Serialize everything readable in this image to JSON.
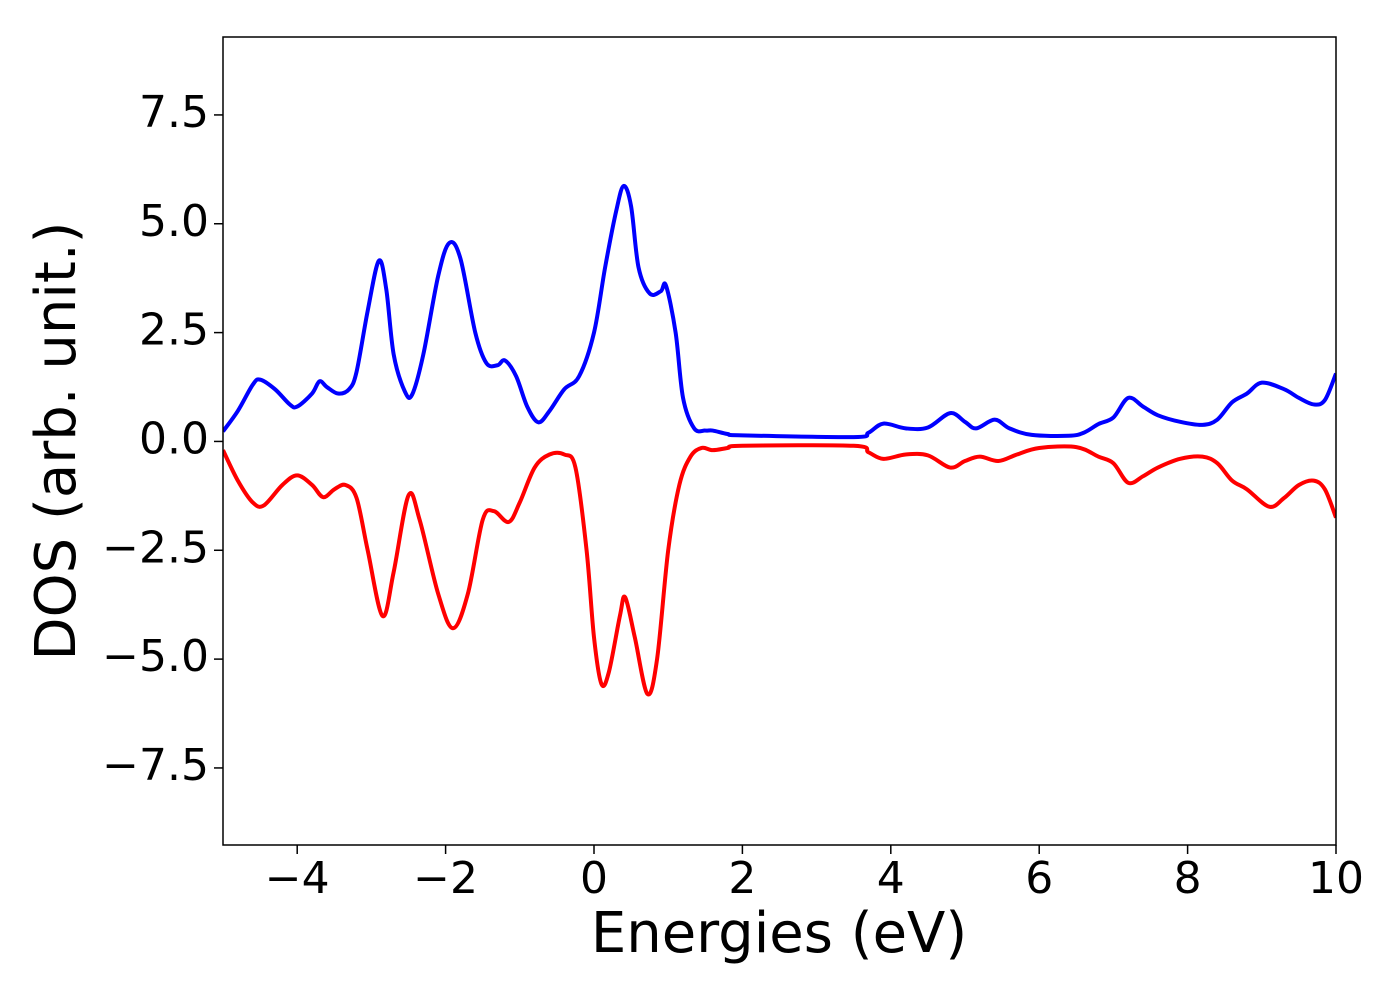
{
  "chart_data": {
    "type": "line",
    "xlabel": "Energies (eV)",
    "ylabel": "DOS (arb. unit.)",
    "xlim": [
      -5,
      10
    ],
    "ylim": [
      -9.27,
      9.29
    ],
    "xticks": [
      {
        "value": -4,
        "label": "−4"
      },
      {
        "value": -2,
        "label": "−2"
      },
      0,
      2,
      4,
      6,
      8,
      10
    ],
    "yticks": [
      {
        "value": -7.5,
        "label": "−7.5"
      },
      {
        "value": -5,
        "label": "−5.0"
      },
      {
        "value": -2.5,
        "label": "−2.5"
      },
      {
        "value": 0,
        "label": "0.0"
      },
      2.5,
      {
        "value": 5,
        "label": "5.0"
      },
      7.5
    ],
    "series": [
      {
        "color": "#0000ff",
        "x": [
          -5,
          -4.8,
          -4.6,
          -4.5,
          -4.3,
          -4.1,
          -4.0,
          -3.8,
          -3.7,
          -3.6,
          -3.45,
          -3.3,
          -3.2,
          -3.05,
          -2.9,
          -2.8,
          -2.7,
          -2.55,
          -2.45,
          -2.3,
          -2.1,
          -1.95,
          -1.8,
          -1.6,
          -1.45,
          -1.3,
          -1.2,
          -1.05,
          -0.9,
          -0.75,
          -0.6,
          -0.4,
          -0.2,
          0,
          0.15,
          0.3,
          0.4,
          0.5,
          0.6,
          0.75,
          0.9,
          0.97,
          1.1,
          1.2,
          1.35,
          1.5,
          1.6,
          1.8,
          2,
          3.5,
          3.7,
          3.9,
          4.2,
          4.5,
          4.8,
          5.0,
          5.15,
          5.4,
          5.6,
          5.9,
          6.4,
          6.6,
          6.8,
          7.0,
          7.2,
          7.4,
          7.6,
          7.9,
          8.2,
          8.4,
          8.6,
          8.8,
          9.0,
          9.3,
          9.5,
          9.7,
          9.85,
          10
        ],
        "values": [
          0.23,
          0.7,
          1.3,
          1.42,
          1.2,
          0.85,
          0.8,
          1.1,
          1.38,
          1.25,
          1.1,
          1.2,
          1.6,
          3.0,
          4.15,
          3.5,
          2.0,
          1.15,
          1.08,
          2.0,
          3.8,
          4.56,
          4.2,
          2.5,
          1.8,
          1.75,
          1.86,
          1.5,
          0.8,
          0.44,
          0.7,
          1.2,
          1.5,
          2.5,
          4.0,
          5.3,
          5.87,
          5.4,
          4.0,
          3.4,
          3.45,
          3.58,
          2.5,
          1.0,
          0.3,
          0.25,
          0.25,
          0.17,
          0.14,
          0.1,
          0.2,
          0.41,
          0.3,
          0.32,
          0.65,
          0.45,
          0.3,
          0.5,
          0.3,
          0.15,
          0.13,
          0.2,
          0.4,
          0.55,
          1.0,
          0.8,
          0.6,
          0.45,
          0.38,
          0.5,
          0.9,
          1.1,
          1.35,
          1.2,
          1.0,
          0.85,
          0.95,
          1.56
        ]
      },
      {
        "color": "#ff0000",
        "x": [
          -5,
          -4.8,
          -4.6,
          -4.45,
          -4.2,
          -4.0,
          -3.8,
          -3.65,
          -3.5,
          -3.35,
          -3.2,
          -3.05,
          -2.85,
          -2.7,
          -2.5,
          -2.35,
          -2.1,
          -1.9,
          -1.7,
          -1.5,
          -1.35,
          -1.15,
          -1.0,
          -0.8,
          -0.6,
          -0.4,
          -0.25,
          -0.1,
          0.0,
          0.1,
          0.2,
          0.35,
          0.42,
          0.55,
          0.72,
          0.85,
          1.0,
          1.15,
          1.3,
          1.45,
          1.6,
          1.8,
          2,
          3.5,
          3.7,
          3.9,
          4.2,
          4.5,
          4.8,
          5.0,
          5.2,
          5.45,
          5.7,
          6.0,
          6.5,
          6.8,
          7.0,
          7.2,
          7.4,
          7.6,
          7.9,
          8.2,
          8.4,
          8.6,
          8.8,
          9.1,
          9.3,
          9.5,
          9.7,
          9.85,
          10
        ],
        "values": [
          -0.2,
          -0.9,
          -1.4,
          -1.47,
          -1.0,
          -0.78,
          -1.0,
          -1.28,
          -1.1,
          -1.0,
          -1.3,
          -2.5,
          -4.01,
          -3.0,
          -1.24,
          -1.8,
          -3.5,
          -4.29,
          -3.5,
          -1.8,
          -1.6,
          -1.85,
          -1.4,
          -0.6,
          -0.3,
          -0.3,
          -0.6,
          -2.5,
          -4.5,
          -5.57,
          -5.3,
          -4.0,
          -3.58,
          -4.5,
          -5.8,
          -5.0,
          -2.5,
          -1.0,
          -0.35,
          -0.15,
          -0.2,
          -0.15,
          -0.1,
          -0.1,
          -0.25,
          -0.4,
          -0.3,
          -0.32,
          -0.6,
          -0.45,
          -0.35,
          -0.45,
          -0.3,
          -0.15,
          -0.13,
          -0.35,
          -0.5,
          -0.95,
          -0.8,
          -0.6,
          -0.4,
          -0.35,
          -0.5,
          -0.9,
          -1.1,
          -1.5,
          -1.3,
          -1.0,
          -0.9,
          -1.1,
          -1.75
        ]
      }
    ]
  }
}
